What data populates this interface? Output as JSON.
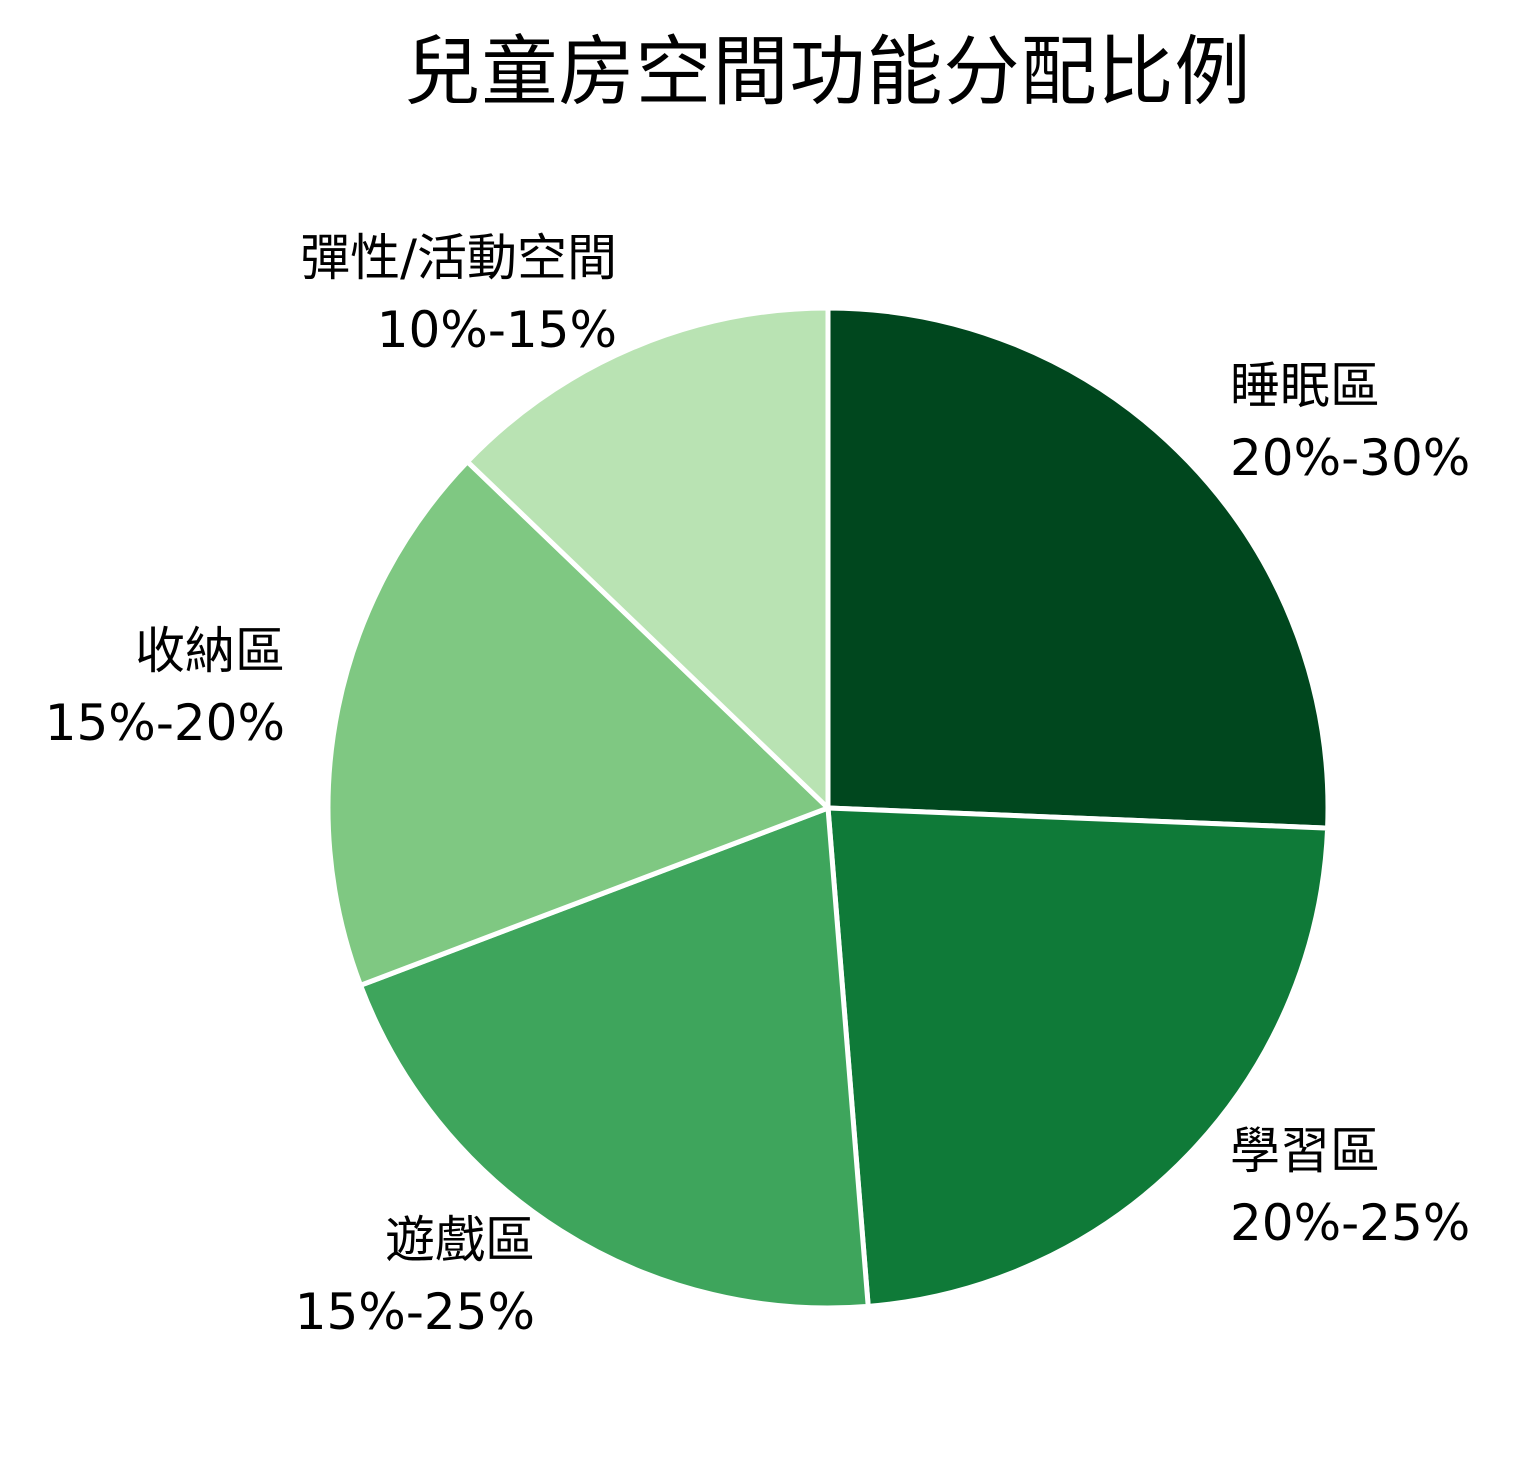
{
  "chart_data": {
    "type": "pie",
    "title": "兒童房空間功能分配比例",
    "start_angle": "12 o'clock, clockwise",
    "slices": [
      {
        "label": "睡眠區",
        "range": "20%-30%",
        "value": 25.0,
        "color": "#00471e"
      },
      {
        "label": "學習區",
        "range": "20%-25%",
        "value": 22.5,
        "color": "#0f7a38"
      },
      {
        "label": "遊戲區",
        "range": "15%-25%",
        "value": 20.0,
        "color": "#3ea55c"
      },
      {
        "label": "收納區",
        "range": "15%-20%",
        "value": 17.5,
        "color": "#7fc882"
      },
      {
        "label": "彈性/活動空間",
        "range": "10%-15%",
        "value": 12.5,
        "color": "#b9e3b3"
      }
    ],
    "legend": "none (labels placed outside slices)",
    "edge_color": "#ffffff"
  },
  "title": "兒童房空間功能分配比例"
}
